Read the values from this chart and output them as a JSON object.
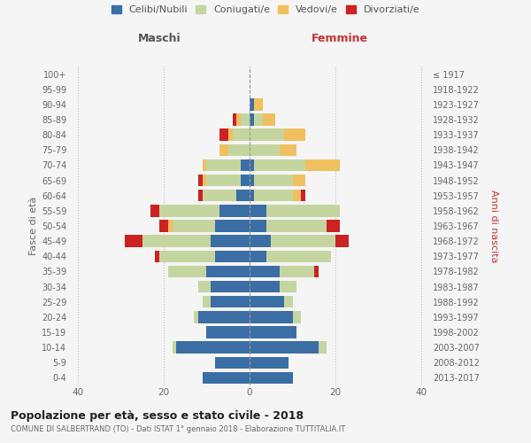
{
  "age_groups": [
    "0-4",
    "5-9",
    "10-14",
    "15-19",
    "20-24",
    "25-29",
    "30-34",
    "35-39",
    "40-44",
    "45-49",
    "50-54",
    "55-59",
    "60-64",
    "65-69",
    "70-74",
    "75-79",
    "80-84",
    "85-89",
    "90-94",
    "95-99",
    "100+"
  ],
  "birth_years": [
    "2013-2017",
    "2008-2012",
    "2003-2007",
    "1998-2002",
    "1993-1997",
    "1988-1992",
    "1983-1987",
    "1978-1982",
    "1973-1977",
    "1968-1972",
    "1963-1967",
    "1958-1962",
    "1953-1957",
    "1948-1952",
    "1943-1947",
    "1938-1942",
    "1933-1937",
    "1928-1932",
    "1923-1927",
    "1918-1922",
    "≤ 1917"
  ],
  "colors": {
    "celibi": "#3b6ea5",
    "coniugati": "#c5d5a0",
    "vedovi": "#f0c060",
    "divorziati": "#cc2222"
  },
  "legend_labels": [
    "Celibi/Nubili",
    "Coniugati/e",
    "Vedovi/e",
    "Divorziati/e"
  ],
  "legend_colors": [
    "#3b6ea5",
    "#c5d5a0",
    "#f0c060",
    "#cc2222"
  ],
  "males": {
    "celibi": [
      11,
      8,
      17,
      10,
      12,
      9,
      9,
      10,
      8,
      9,
      8,
      7,
      3,
      2,
      2,
      0,
      0,
      0,
      0,
      0,
      0
    ],
    "coniugati": [
      0,
      0,
      1,
      0,
      1,
      2,
      3,
      9,
      13,
      16,
      10,
      14,
      8,
      8,
      8,
      5,
      4,
      2,
      0,
      0,
      0
    ],
    "vedovi": [
      0,
      0,
      0,
      0,
      0,
      0,
      0,
      0,
      0,
      0,
      1,
      0,
      0,
      1,
      1,
      2,
      1,
      1,
      0,
      0,
      0
    ],
    "divorziati": [
      0,
      0,
      0,
      0,
      0,
      0,
      0,
      0,
      1,
      4,
      2,
      2,
      1,
      1,
      0,
      0,
      2,
      1,
      0,
      0,
      0
    ]
  },
  "females": {
    "nubili": [
      10,
      9,
      16,
      11,
      10,
      8,
      7,
      7,
      4,
      5,
      4,
      4,
      1,
      1,
      1,
      0,
      0,
      1,
      1,
      0,
      0
    ],
    "coniugate": [
      0,
      0,
      2,
      0,
      2,
      2,
      4,
      8,
      15,
      15,
      14,
      17,
      9,
      9,
      12,
      7,
      8,
      2,
      0,
      0,
      0
    ],
    "vedove": [
      0,
      0,
      0,
      0,
      0,
      0,
      0,
      0,
      0,
      0,
      0,
      0,
      2,
      3,
      8,
      4,
      5,
      3,
      2,
      0,
      0
    ],
    "divorziate": [
      0,
      0,
      0,
      0,
      0,
      0,
      0,
      1,
      0,
      3,
      3,
      0,
      1,
      0,
      0,
      0,
      0,
      0,
      0,
      0,
      0
    ]
  },
  "xlim": 42,
  "title": "Popolazione per età, sesso e stato civile - 2018",
  "subtitle": "COMUNE DI SALBERTRAND (TO) - Dati ISTAT 1° gennaio 2018 - Elaborazione TUTTITALIA.IT",
  "xlabel_left": "Maschi",
  "xlabel_right": "Femmine",
  "ylabel_left": "Fasce di età",
  "ylabel_right": "Anni di nascita",
  "background_color": "#f5f5f5"
}
